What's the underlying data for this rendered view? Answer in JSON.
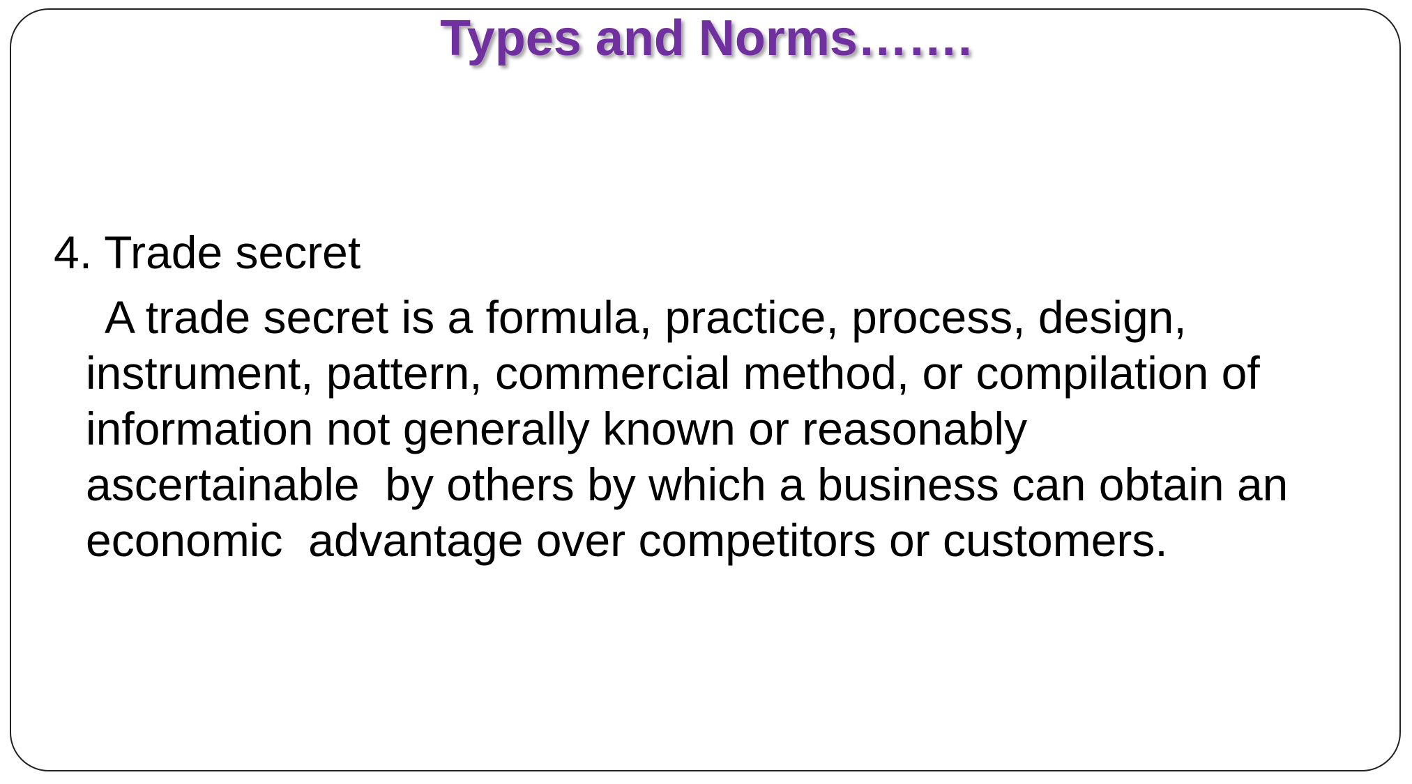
{
  "slide": {
    "title": "Types and Norms…….",
    "heading": "4. Trade secret",
    "paragraph_lines": [
      "A trade secret is a formula, practice, process, design,",
      "instrument, pattern, commercial method, or compilation of",
      "information not generally known or reasonably",
      "ascertainable  by others by which a business can obtain an",
      "economic  advantage over competitors or customers."
    ]
  }
}
